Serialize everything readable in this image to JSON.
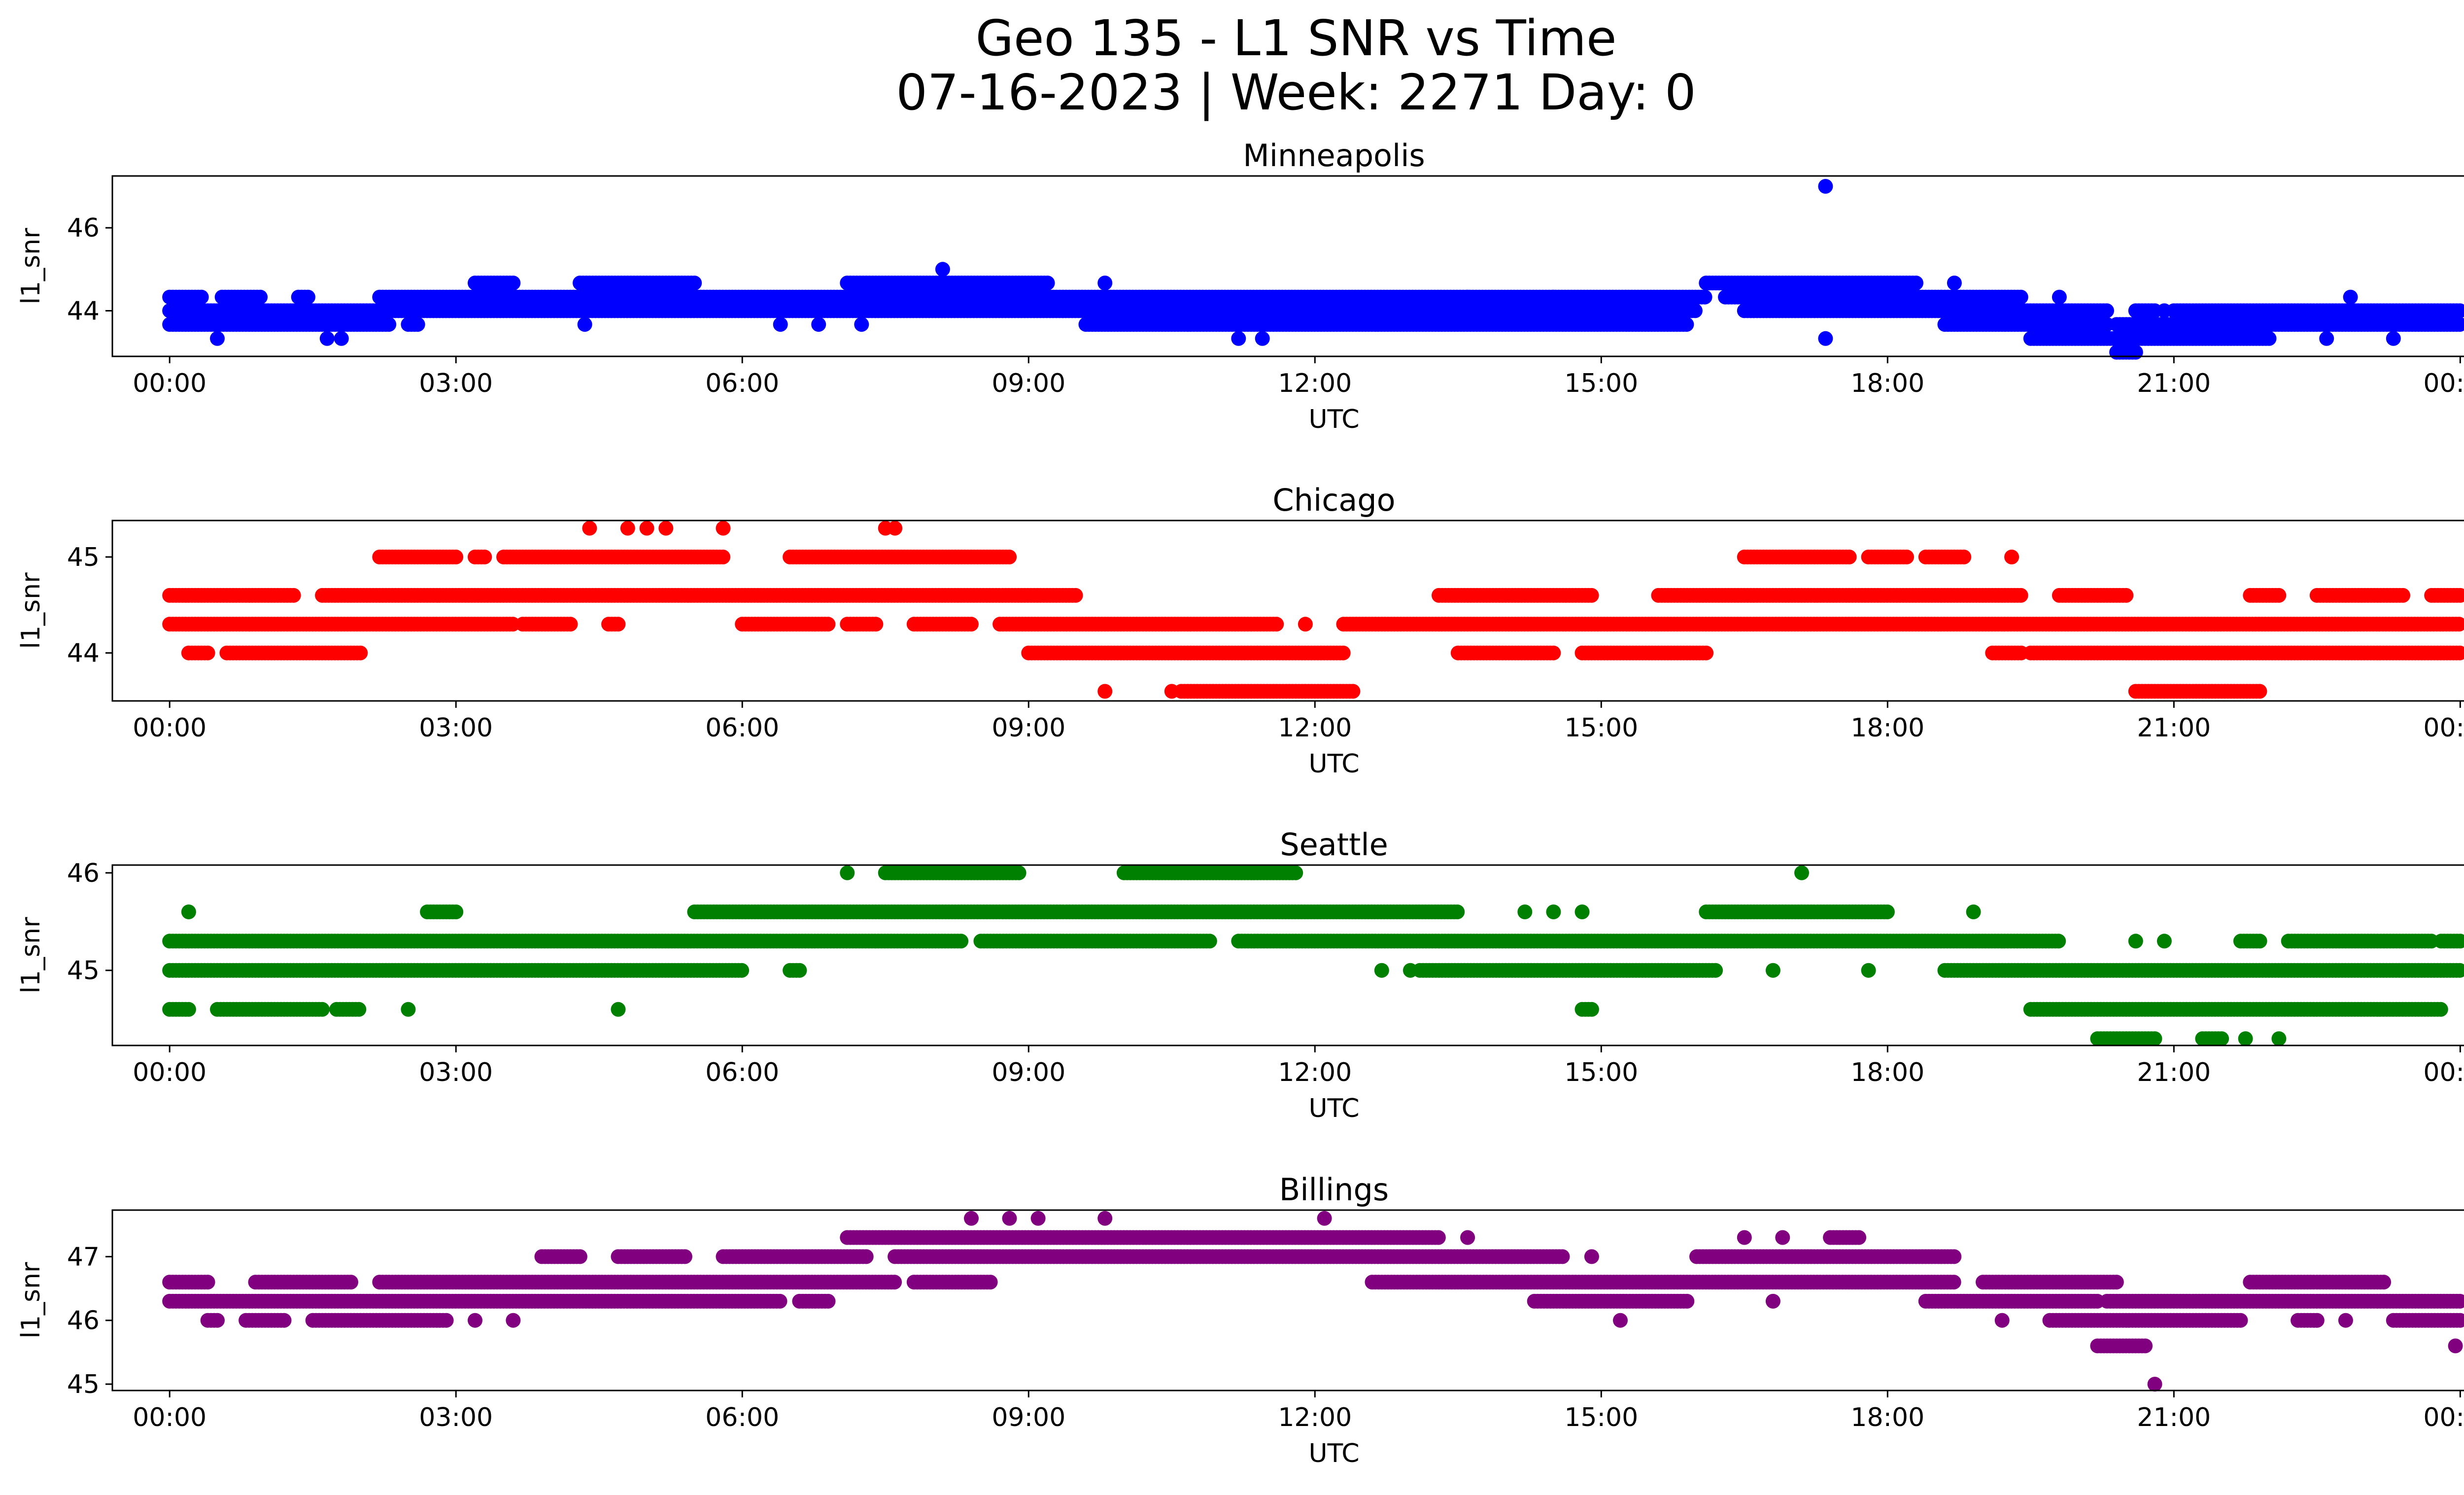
{
  "figure": {
    "title_line1": "Geo 135 - L1 SNR vs Time",
    "title_line2": "07-16-2023 | Week: 2271 Day: 0"
  },
  "chart_data": [
    {
      "type": "scatter",
      "title": "Minneapolis",
      "xlabel": "UTC",
      "ylabel": "l1_snr",
      "color": "#0000ff",
      "xticks": [
        "00:00",
        "03:00",
        "06:00",
        "09:00",
        "12:00",
        "15:00",
        "18:00",
        "21:00",
        "00:00"
      ],
      "xlim_hours": [
        -0.6,
        25.0
      ],
      "ylim": [
        42.9,
        47.25
      ],
      "yticks": [
        44,
        46
      ],
      "bands": [
        {
          "y": 44.33,
          "segments": [
            [
              0.0,
              0.35
            ],
            [
              0.55,
              0.95
            ],
            [
              1.35,
              1.45
            ],
            [
              2.2,
              16.1
            ],
            [
              16.3,
              19.4
            ]
          ]
        },
        {
          "y": 44.0,
          "segments": [
            [
              0.0,
              16.0
            ],
            [
              16.5,
              20.3
            ],
            [
              20.6,
              20.8
            ],
            [
              21.0,
              24.0
            ]
          ]
        },
        {
          "y": 43.67,
          "segments": [
            [
              0.0,
              2.3
            ],
            [
              2.5,
              2.6
            ],
            [
              9.6,
              15.9
            ],
            [
              18.6,
              20.3
            ],
            [
              20.4,
              24.0
            ]
          ]
        },
        {
          "y": 44.67,
          "segments": [
            [
              3.2,
              3.6
            ],
            [
              4.3,
              5.5
            ],
            [
              7.1,
              9.2
            ],
            [
              16.1,
              18.3
            ]
          ]
        },
        {
          "y": 43.33,
          "segments": [
            [
              19.5,
              22.0
            ]
          ]
        },
        {
          "y": 43.0,
          "segments": [
            [
              20.4,
              20.6
            ]
          ]
        }
      ],
      "points": [
        [
          0.5,
          43.33
        ],
        [
          1.65,
          43.33
        ],
        [
          1.8,
          43.33
        ],
        [
          4.35,
          43.67
        ],
        [
          6.4,
          43.67
        ],
        [
          6.8,
          43.67
        ],
        [
          7.25,
          43.67
        ],
        [
          8.1,
          45.0
        ],
        [
          9.8,
          44.67
        ],
        [
          11.2,
          43.33
        ],
        [
          11.45,
          43.33
        ],
        [
          13.6,
          44.33
        ],
        [
          14.5,
          44.33
        ],
        [
          17.35,
          47.0
        ],
        [
          17.35,
          43.33
        ],
        [
          18.7,
          44.67
        ],
        [
          19.8,
          44.33
        ],
        [
          20.9,
          44.0
        ],
        [
          22.6,
          43.33
        ],
        [
          22.85,
          44.33
        ],
        [
          23.3,
          43.33
        ]
      ]
    },
    {
      "type": "scatter",
      "title": "Chicago",
      "xlabel": "UTC",
      "ylabel": "l1_snr",
      "color": "#ff0000",
      "xticks": [
        "00:00",
        "03:00",
        "06:00",
        "09:00",
        "12:00",
        "15:00",
        "18:00",
        "21:00",
        "00:00"
      ],
      "xlim_hours": [
        -0.6,
        25.0
      ],
      "ylim": [
        43.5,
        45.38
      ],
      "yticks": [
        44,
        45
      ],
      "bands": [
        {
          "y": 44.3,
          "segments": [
            [
              0.0,
              3.6
            ],
            [
              3.7,
              4.2
            ],
            [
              4.6,
              4.7
            ],
            [
              6.0,
              6.9
            ],
            [
              7.1,
              7.4
            ],
            [
              7.8,
              8.4
            ],
            [
              8.7,
              11.6
            ],
            [
              12.3,
              24.0
            ]
          ]
        },
        {
          "y": 44.6,
          "segments": [
            [
              0.0,
              1.3
            ],
            [
              1.6,
              9.5
            ],
            [
              13.3,
              14.9
            ],
            [
              15.6,
              19.4
            ],
            [
              19.8,
              20.5
            ],
            [
              21.8,
              22.1
            ],
            [
              22.5,
              23.4
            ],
            [
              23.7,
              24.0
            ]
          ]
        },
        {
          "y": 44.0,
          "segments": [
            [
              0.2,
              0.4
            ],
            [
              0.6,
              2.0
            ],
            [
              9.0,
              12.3
            ],
            [
              13.5,
              14.5
            ],
            [
              14.8,
              16.1
            ],
            [
              19.1,
              19.4
            ],
            [
              19.5,
              24.0
            ]
          ]
        },
        {
          "y": 45.0,
          "segments": [
            [
              2.2,
              3.0
            ],
            [
              3.2,
              3.3
            ],
            [
              3.5,
              5.8
            ],
            [
              6.5,
              8.8
            ],
            [
              16.5,
              17.6
            ],
            [
              17.8,
              18.2
            ],
            [
              18.4,
              18.8
            ]
          ]
        },
        {
          "y": 43.6,
          "segments": [
            [
              10.6,
              12.4
            ],
            [
              20.6,
              21.9
            ]
          ]
        }
      ],
      "points": [
        [
          4.4,
          45.3
        ],
        [
          4.8,
          45.3
        ],
        [
          5.0,
          45.3
        ],
        [
          5.2,
          45.3
        ],
        [
          5.8,
          45.3
        ],
        [
          7.5,
          45.3
        ],
        [
          7.6,
          45.3
        ],
        [
          9.8,
          43.6
        ],
        [
          10.5,
          43.6
        ],
        [
          11.9,
          44.3
        ],
        [
          19.3,
          45.0
        ]
      ]
    },
    {
      "type": "scatter",
      "title": "Seattle",
      "xlabel": "UTC",
      "ylabel": "l1_snr",
      "color": "#008000",
      "xticks": [
        "00:00",
        "03:00",
        "06:00",
        "09:00",
        "12:00",
        "15:00",
        "18:00",
        "21:00",
        "00:00"
      ],
      "xlim_hours": [
        -0.6,
        25.0
      ],
      "ylim": [
        44.23,
        46.08
      ],
      "yticks": [
        45,
        46
      ],
      "bands": [
        {
          "y": 45.3,
          "segments": [
            [
              0.0,
              8.3
            ],
            [
              8.5,
              10.9
            ],
            [
              11.2,
              19.8
            ],
            [
              21.7,
              21.9
            ],
            [
              22.2,
              23.7
            ],
            [
              23.8,
              24.0
            ]
          ]
        },
        {
          "y": 45.0,
          "segments": [
            [
              0.0,
              6.0
            ],
            [
              6.5,
              6.6
            ],
            [
              13.1,
              16.2
            ],
            [
              18.6,
              24.0
            ]
          ]
        },
        {
          "y": 45.6,
          "segments": [
            [
              2.7,
              3.0
            ],
            [
              5.5,
              13.5
            ],
            [
              16.1,
              18.0
            ]
          ]
        },
        {
          "y": 44.6,
          "segments": [
            [
              0.0,
              0.2
            ],
            [
              0.5,
              1.6
            ],
            [
              1.75,
              2.0
            ],
            [
              14.8,
              14.9
            ],
            [
              19.5,
              23.8
            ]
          ]
        },
        {
          "y": 46.0,
          "segments": [
            [
              7.1,
              7.1
            ],
            [
              7.5,
              8.9
            ],
            [
              10.0,
              11.8
            ]
          ]
        },
        {
          "y": 44.3,
          "segments": [
            [
              20.2,
              20.8
            ],
            [
              21.3,
              21.5
            ]
          ]
        }
      ],
      "points": [
        [
          0.2,
          45.6
        ],
        [
          2.5,
          44.6
        ],
        [
          4.7,
          44.6
        ],
        [
          12.7,
          45.0
        ],
        [
          13.0,
          45.0
        ],
        [
          14.2,
          45.6
        ],
        [
          14.5,
          45.6
        ],
        [
          14.8,
          45.6
        ],
        [
          17.1,
          46.0
        ],
        [
          16.8,
          45.0
        ],
        [
          17.8,
          45.0
        ],
        [
          18.9,
          45.6
        ],
        [
          20.6,
          45.3
        ],
        [
          20.9,
          45.3
        ],
        [
          21.75,
          44.3
        ],
        [
          22.1,
          44.3
        ]
      ]
    },
    {
      "type": "scatter",
      "title": "Billings",
      "xlabel": "UTC",
      "ylabel": "l1_snr",
      "color": "#800080",
      "xticks": [
        "00:00",
        "03:00",
        "06:00",
        "09:00",
        "12:00",
        "15:00",
        "18:00",
        "21:00",
        "00:00"
      ],
      "xlim_hours": [
        -0.6,
        25.0
      ],
      "ylim": [
        44.9,
        47.73
      ],
      "yticks": [
        45,
        46,
        47
      ],
      "bands": [
        {
          "y": 46.3,
          "segments": [
            [
              0.0,
              6.4
            ],
            [
              6.6,
              6.9
            ],
            [
              14.3,
              15.9
            ],
            [
              18.4,
              20.2
            ],
            [
              20.3,
              24.0
            ]
          ]
        },
        {
          "y": 46.6,
          "segments": [
            [
              0.0,
              0.4
            ],
            [
              0.9,
              1.9
            ],
            [
              2.2,
              7.6
            ],
            [
              7.8,
              8.6
            ],
            [
              12.6,
              18.7
            ],
            [
              19.0,
              20.4
            ],
            [
              21.8,
              23.2
            ]
          ]
        },
        {
          "y": 46.0,
          "segments": [
            [
              0.4,
              0.5
            ],
            [
              0.8,
              1.2
            ],
            [
              1.5,
              2.9
            ],
            [
              19.7,
              21.7
            ],
            [
              22.3,
              22.5
            ],
            [
              23.3,
              24.0
            ]
          ]
        },
        {
          "y": 47.0,
          "segments": [
            [
              3.9,
              4.3
            ],
            [
              4.7,
              5.4
            ],
            [
              5.8,
              7.3
            ],
            [
              7.6,
              14.6
            ],
            [
              16.0,
              18.7
            ]
          ]
        },
        {
          "y": 47.3,
          "segments": [
            [
              7.1,
              13.3
            ],
            [
              17.4,
              17.7
            ]
          ]
        },
        {
          "y": 45.6,
          "segments": [
            [
              20.2,
              20.7
            ]
          ]
        }
      ],
      "points": [
        [
          3.6,
          46.0
        ],
        [
          3.2,
          46.0
        ],
        [
          8.4,
          47.6
        ],
        [
          8.8,
          47.6
        ],
        [
          9.1,
          47.6
        ],
        [
          9.8,
          47.6
        ],
        [
          12.1,
          47.6
        ],
        [
          13.6,
          47.3
        ],
        [
          15.2,
          46.0
        ],
        [
          14.9,
          47.0
        ],
        [
          16.9,
          47.3
        ],
        [
          16.5,
          47.3
        ],
        [
          16.8,
          46.3
        ],
        [
          19.2,
          46.0
        ],
        [
          20.8,
          45.0
        ],
        [
          22.8,
          46.0
        ],
        [
          23.95,
          45.6
        ]
      ]
    }
  ]
}
